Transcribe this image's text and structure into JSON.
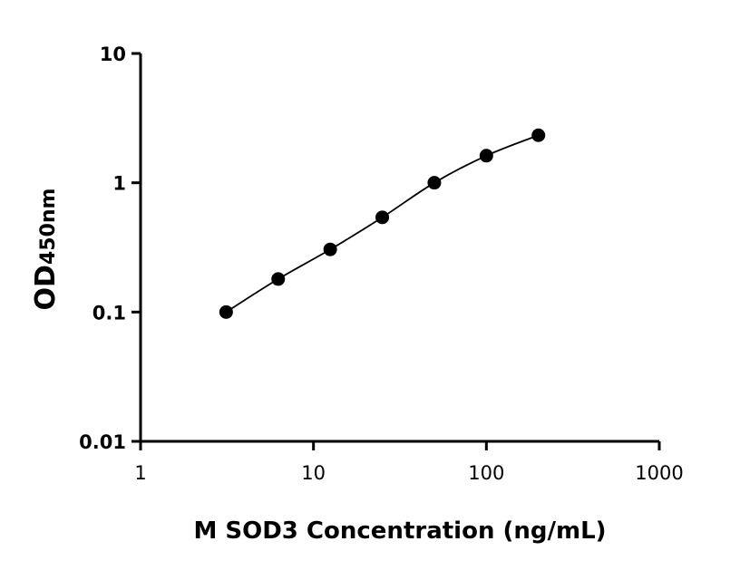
{
  "chart_data": {
    "type": "scatter",
    "title": "",
    "xlabel": "M SOD3 Concentration (ng/mL)",
    "ylabel": "OD",
    "ylabel_subscript": "450nm",
    "xscale": "log",
    "yscale": "log",
    "xlim": [
      1,
      1000
    ],
    "ylim": [
      0.01,
      10
    ],
    "xticks": [
      "1",
      "10",
      "100",
      "1000"
    ],
    "yticks": [
      "0.01",
      "0.1",
      "1",
      "10"
    ],
    "grid": false,
    "fit_curve": true,
    "color": "#000000",
    "x": [
      3.125,
      6.25,
      12.5,
      25,
      50,
      100,
      200
    ],
    "y": [
      0.1,
      0.18,
      0.305,
      0.54,
      1.0,
      1.62,
      2.33
    ]
  }
}
